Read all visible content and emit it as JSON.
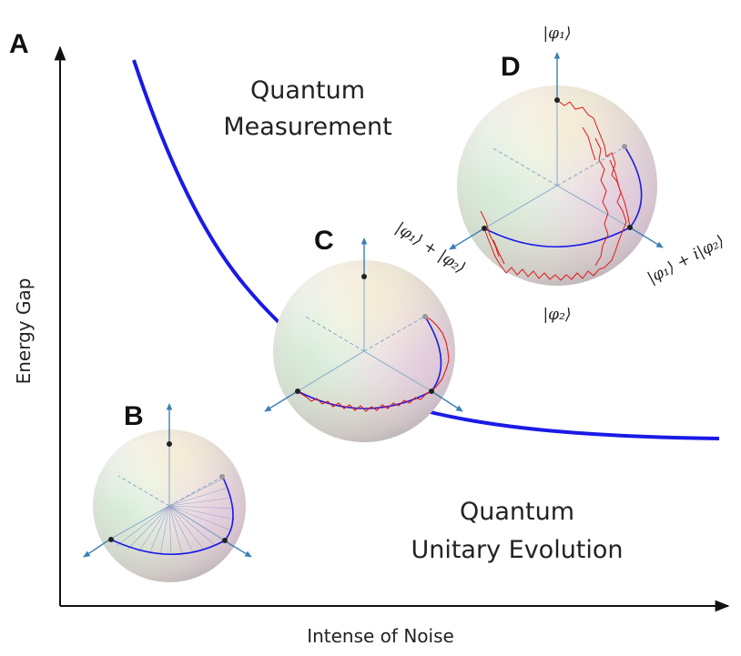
{
  "panels": {
    "a": "A",
    "b": "B",
    "c": "C",
    "d": "D"
  },
  "regions": {
    "top": [
      "Quantum",
      "Measurement"
    ],
    "bottom": [
      "Quantum",
      "Unitary Evolution"
    ]
  },
  "axes": {
    "xlabel": "Intense of Noise",
    "ylabel": "Energy Gap"
  },
  "states": {
    "top": "|φ₁⟩",
    "bottom": "|φ₂⟩",
    "sum": "|φ₁⟩ + |φ₂⟩",
    "sum_i": "|φ₁⟩ + i|φ₂⟩"
  },
  "colors": {
    "curve": "#1a1ae6",
    "trajectory": "#e01818",
    "axis_arrow": "#3a7fb5"
  }
}
